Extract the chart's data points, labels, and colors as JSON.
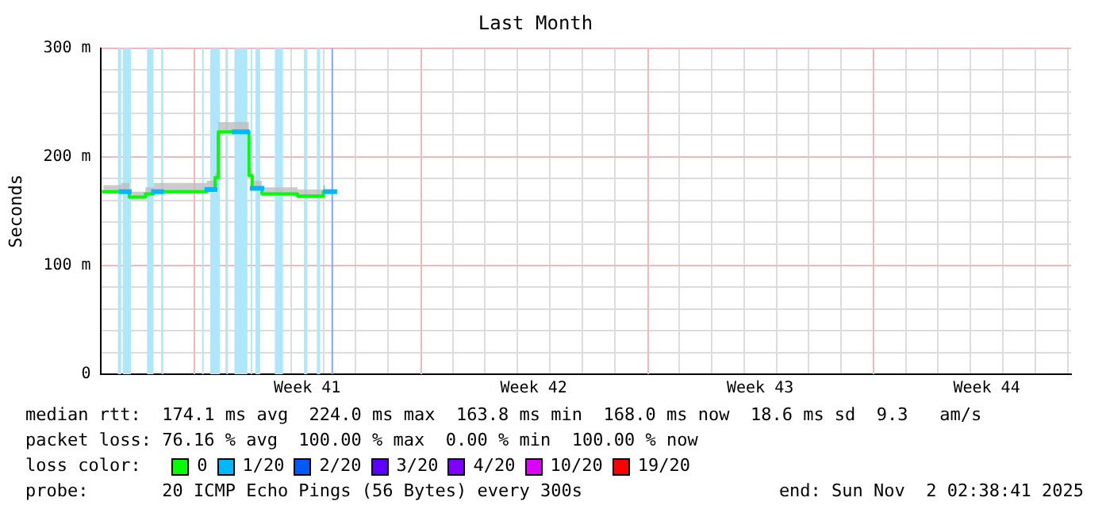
{
  "chart_data": {
    "type": "step",
    "title": "Last Month",
    "ylabel": "Seconds",
    "xlim": [
      "2025-10-03T02:38",
      "2025-11-02T02:38"
    ],
    "xticks": [
      {
        "value": "2025-10-05T00:00",
        "label": null
      },
      {
        "value": "2025-10-07T00:00",
        "label": null
      },
      {
        "value": "2025-10-09T00:00",
        "label": null
      },
      {
        "value": "2025-10-09T12:00",
        "label": "Week 41"
      },
      {
        "value": "2025-10-10T00:00",
        "label": null
      },
      {
        "value": "2025-10-11T00:00",
        "label": null
      },
      {
        "value": "2025-10-12T00:00",
        "label": null
      },
      {
        "value": "2025-10-14T00:00",
        "label": null
      },
      {
        "value": "2025-10-15T00:00",
        "label": null
      },
      {
        "value": "2025-10-16T00:00",
        "label": null
      },
      {
        "value": "2025-10-16T12:00",
        "label": "Week 42"
      },
      {
        "value": "2025-10-17T00:00",
        "label": null
      },
      {
        "value": "2025-10-18T00:00",
        "label": null
      },
      {
        "value": "2025-10-19T00:00",
        "label": null
      },
      {
        "value": "2025-10-21T00:00",
        "label": null
      },
      {
        "value": "2025-10-22T00:00",
        "label": null
      },
      {
        "value": "2025-10-23T00:00",
        "label": null
      },
      {
        "value": "2025-10-23T12:00",
        "label": "Week 43"
      },
      {
        "value": "2025-10-24T00:00",
        "label": null
      },
      {
        "value": "2025-10-25T00:00",
        "label": null
      },
      {
        "value": "2025-10-26T00:00",
        "label": null
      },
      {
        "value": "2025-10-28T00:00",
        "label": null
      },
      {
        "value": "2025-10-29T00:00",
        "label": null
      },
      {
        "value": "2025-10-30T00:00",
        "label": null
      },
      {
        "value": "2025-10-30T12:00",
        "label": "Week 44"
      },
      {
        "value": "2025-10-31T00:00",
        "label": null
      },
      {
        "value": "2025-11-01T00:00",
        "label": null
      },
      {
        "value": "2025-11-02T00:00",
        "label": null
      }
    ],
    "ylim": [
      0,
      300
    ],
    "yticks": [
      0,
      {
        "value": 20,
        "label": null
      },
      {
        "value": 40,
        "label": null
      },
      {
        "value": 60,
        "label": null
      },
      {
        "value": 80,
        "label": null
      },
      {
        "value": 100,
        "label": "100 m"
      },
      {
        "value": 120,
        "label": null
      },
      {
        "value": 140,
        "label": null
      },
      {
        "value": 160,
        "label": null
      },
      {
        "value": 180,
        "label": null
      },
      {
        "value": 200,
        "label": "200 m"
      },
      {
        "value": 220,
        "label": null
      },
      {
        "value": 240,
        "label": null
      },
      {
        "value": 260,
        "label": null
      },
      {
        "value": 280,
        "label": null
      },
      {
        "value": 300,
        "label": "300 m"
      }
    ],
    "grid": true,
    "legend": "bottom",
    "legend_title": "loss color:",
    "series": [
      {
        "name": "0",
        "color": "#00ff00",
        "x": [
          "2025-10-03T04:48",
          "2025-10-03T18:00",
          "2025-10-04T00:00",
          "2025-10-04T12:00",
          "2025-10-04T18:00",
          "2025-10-05T00:00",
          "2025-10-06T09:36",
          "2025-10-06T15:36",
          "2025-10-06T18:00",
          "2025-10-07T06:00",
          "2025-10-07T16:48",
          "2025-10-07T19:12",
          "2025-10-08T02:24",
          "2025-10-09T04:48",
          "2025-10-10T00:00",
          "2025-10-10T01:36"
        ],
        "values": [
          168,
          168,
          163,
          166,
          168,
          168,
          170,
          181,
          223,
          223,
          183,
          171,
          166,
          164,
          168,
          168
        ],
        "lower": [
          166,
          166,
          161,
          164,
          166,
          166,
          168,
          179,
          221,
          221,
          181,
          169,
          164,
          162,
          166,
          166
        ],
        "upper": [
          174,
          176,
          168,
          172,
          176,
          176,
          178,
          185,
          232,
          232,
          190,
          178,
          172,
          170,
          174,
          172
        ]
      },
      {
        "name": "1/20",
        "color": "#00b8ff",
        "x": [
          "2025-10-03T18:00",
          "2025-10-04T00:00",
          null,
          "2025-10-04T18:00",
          "2025-10-05T00:00",
          null,
          "2025-10-06T09:36",
          "2025-10-06T15:36",
          null,
          "2025-10-07T06:00",
          "2025-10-07T15:36",
          null,
          "2025-10-07T19:12",
          "2025-10-08T02:24",
          null,
          "2025-10-10T01:36",
          "2025-10-10T08:24"
        ],
        "values": [
          168,
          168,
          null,
          168,
          168,
          null,
          170,
          170,
          null,
          223,
          223,
          null,
          171,
          171,
          null,
          168,
          168
        ]
      },
      {
        "name": "2/20",
        "color": "#0059ff"
      },
      {
        "name": "3/20",
        "color": "#5e00ff"
      },
      {
        "name": "4/20",
        "color": "#7e00ff"
      },
      {
        "name": "10/20",
        "color": "#dd00ff"
      },
      {
        "name": "19/20",
        "color": "#ff0000"
      }
    ],
    "bands": [
      {
        "axis": "x",
        "from": "2025-10-03T15:36",
        "to": "2025-10-03T18:00",
        "color": "#aee6fa"
      },
      {
        "axis": "x",
        "from": "2025-10-03T19:12",
        "to": "2025-10-04T01:12",
        "color": "#aee6fa"
      },
      {
        "axis": "x",
        "from": "2025-10-04T13:12",
        "to": "2025-10-04T18:00",
        "color": "#aee6fa"
      },
      {
        "axis": "x",
        "from": "2025-10-05T00:00",
        "to": "2025-10-05T01:12",
        "color": "#aee6fa"
      },
      {
        "axis": "x",
        "from": "2025-10-06T06:00",
        "to": "2025-10-06T07:12",
        "color": "#aee6fa"
      },
      {
        "axis": "x",
        "from": "2025-10-06T12:00",
        "to": "2025-10-06T19:12",
        "color": "#aee6fa"
      },
      {
        "axis": "x",
        "from": "2025-10-07T00:00",
        "to": "2025-10-07T01:12",
        "color": "#aee6fa"
      },
      {
        "axis": "x",
        "from": "2025-10-07T06:00",
        "to": "2025-10-07T15:36",
        "color": "#aee6fa"
      },
      {
        "axis": "x",
        "from": "2025-10-07T18:00",
        "to": "2025-10-07T19:12",
        "color": "#aee6fa"
      },
      {
        "axis": "x",
        "from": "2025-10-07T21:36",
        "to": "2025-10-08T01:12",
        "color": "#aee6fa"
      },
      {
        "axis": "x",
        "from": "2025-10-08T12:00",
        "to": "2025-10-08T18:00",
        "color": "#aee6fa"
      },
      {
        "axis": "x",
        "from": "2025-10-09T09:36",
        "to": "2025-10-09T12:00",
        "color": "#aee6fa"
      },
      {
        "axis": "x",
        "from": "2025-10-09T19:12",
        "to": "2025-10-09T21:36",
        "color": "#aee6fa"
      },
      {
        "axis": "x",
        "from": "2025-10-10T06:00",
        "to": "2025-10-10T07:12",
        "color": "#80a8ff"
      }
    ],
    "ref_lines": [
      {
        "axis": "x",
        "value": "2025-10-06T00:00",
        "color": "#f0b8b8"
      },
      {
        "axis": "x",
        "value": "2025-10-13T00:00",
        "color": "#f0b8b8"
      },
      {
        "axis": "x",
        "value": "2025-10-20T00:00",
        "color": "#f0b8b8"
      },
      {
        "axis": "x",
        "value": "2025-10-27T00:00",
        "color": "#f0b8b8"
      }
    ],
    "annotations": [
      "median rtt:  174.1 ms avg  224.0 ms max  163.8 ms min  168.0 ms now  18.6 ms sd  9.3   am/s",
      "packet loss: 76.16 % avg  100.00 % max  0.00 % min  100.00 % now",
      "probe:       20 ICMP Echo Pings (56 Bytes) every 300s",
      "end: Sun Nov  2 02:38:41 2025"
    ]
  }
}
